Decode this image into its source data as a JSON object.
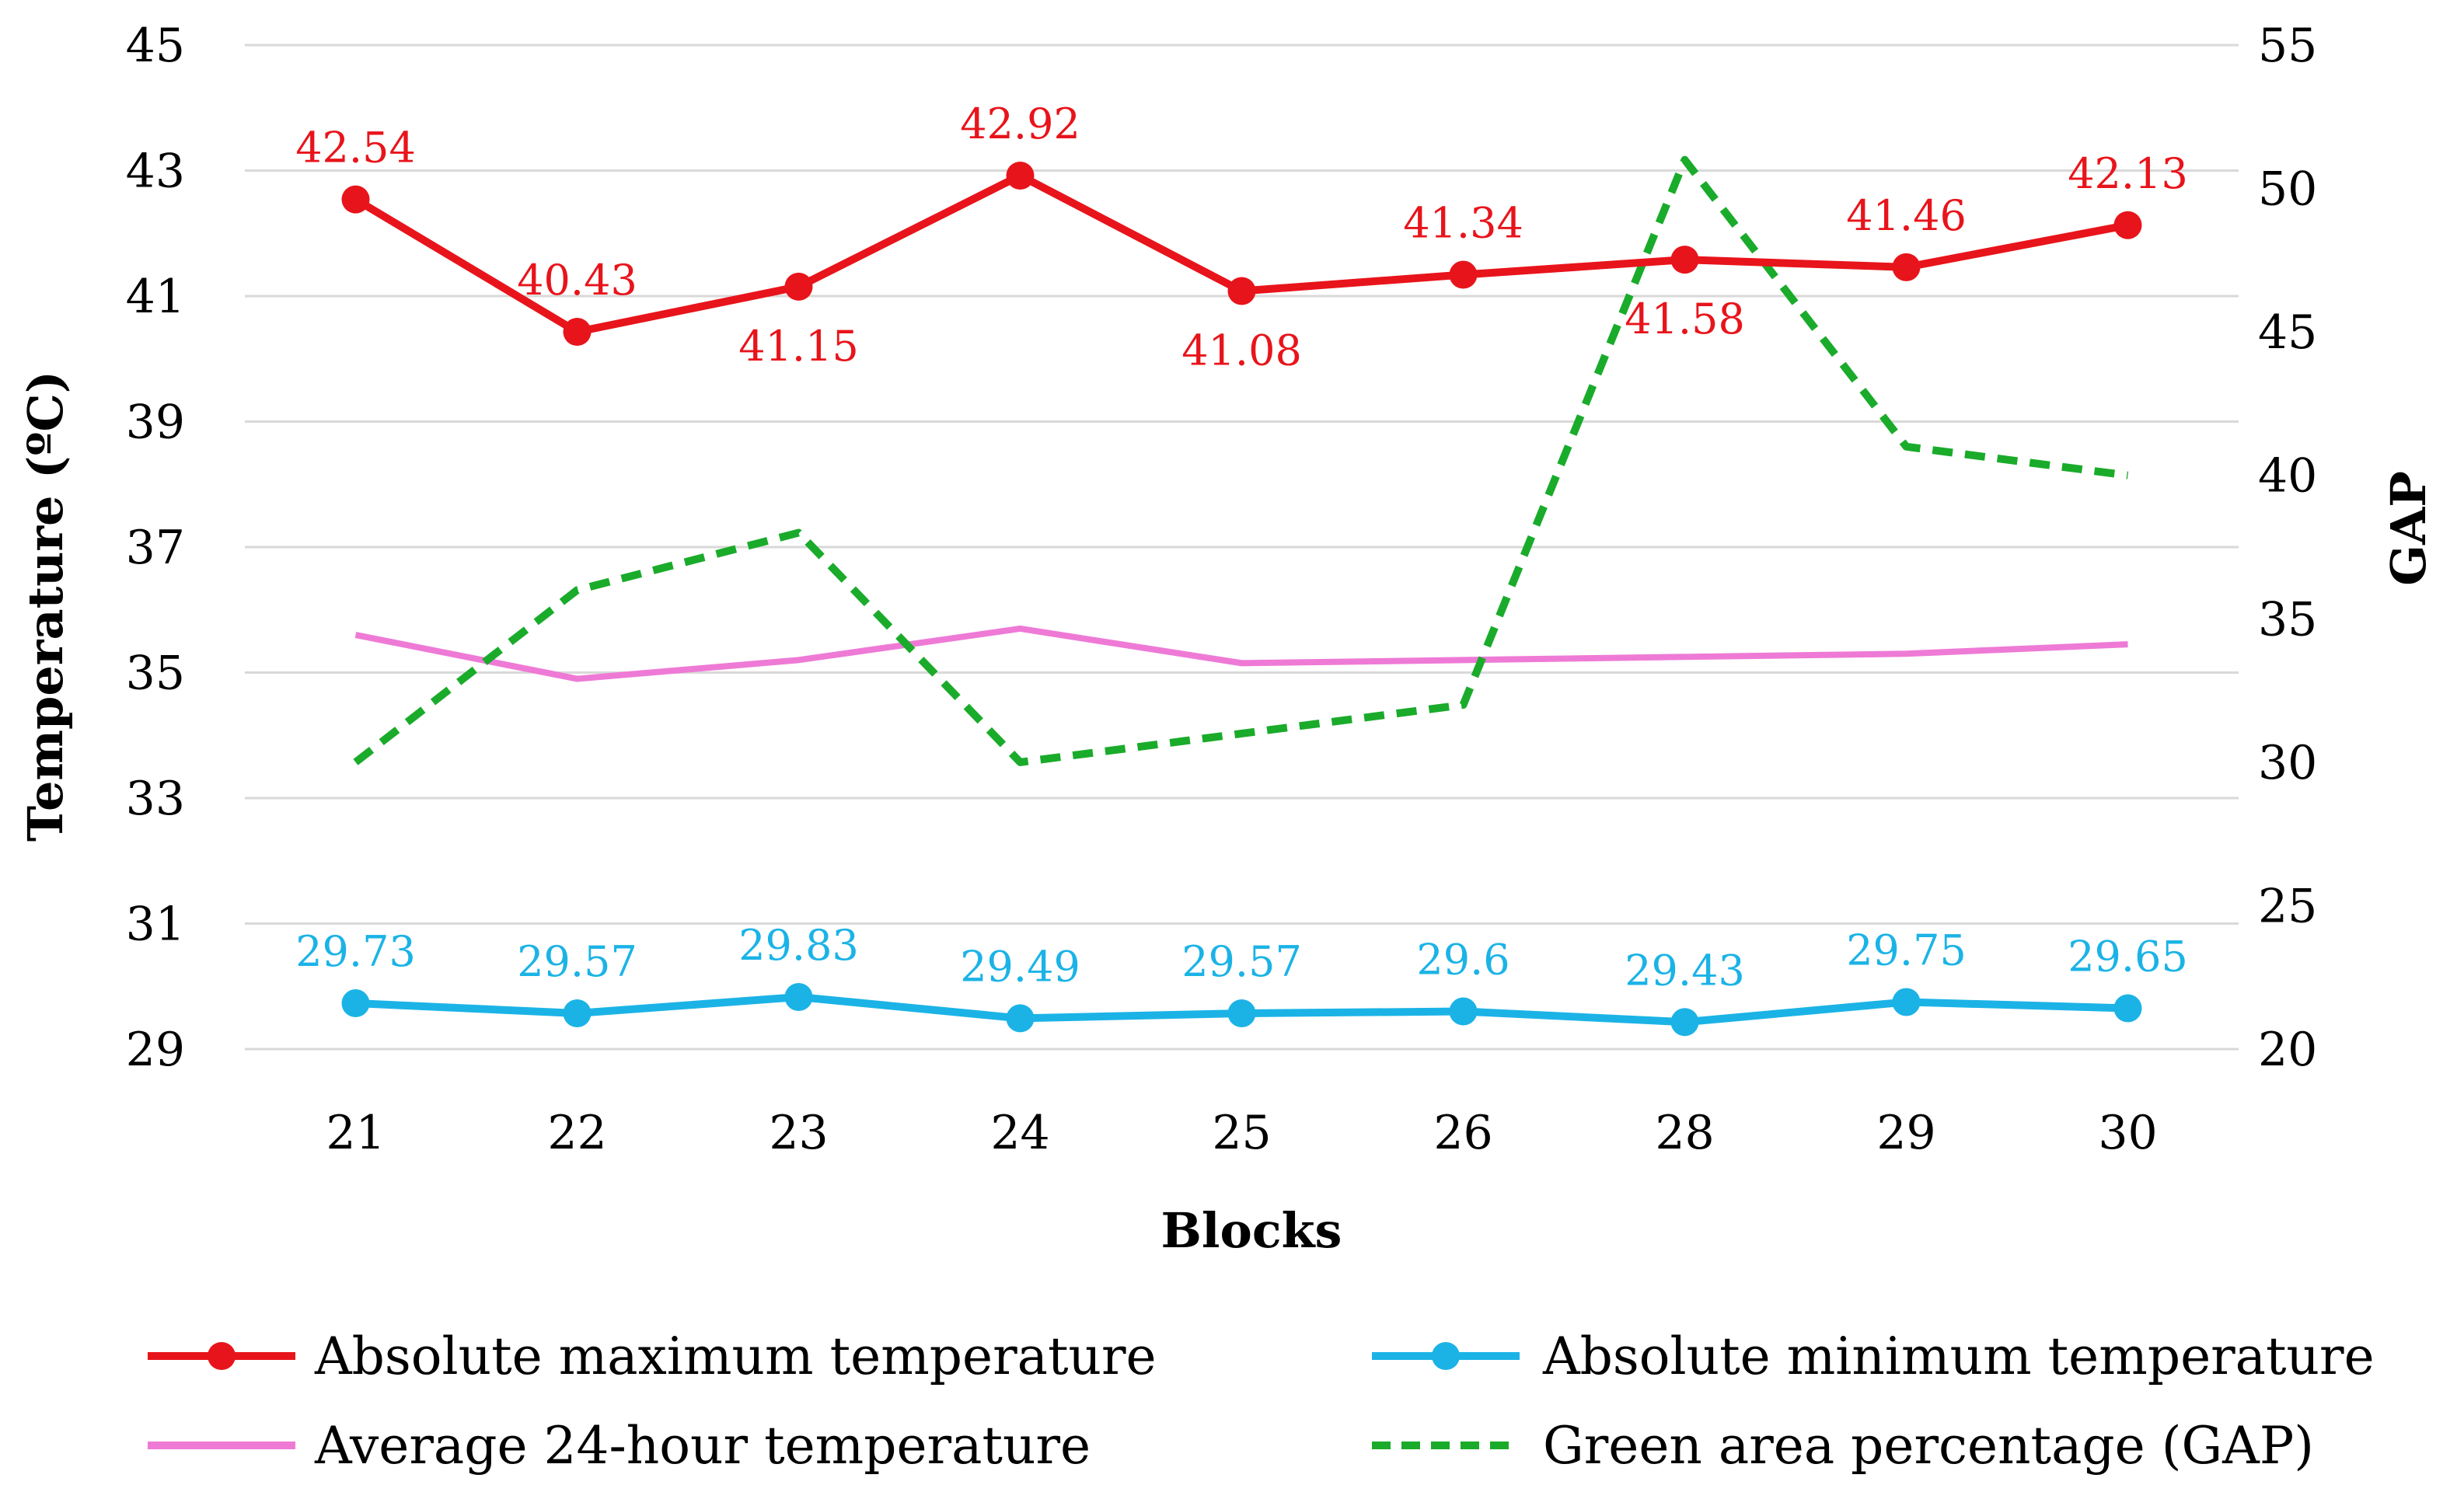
{
  "chart_data": {
    "type": "line",
    "title": "",
    "xlabel": "Blocks",
    "ylabel": "Temperature (ºC)",
    "y2label": "GAP",
    "categories": [
      "21",
      "22",
      "23",
      "24",
      "25",
      "26",
      "28",
      "29",
      "30"
    ],
    "ylim": [
      29,
      45
    ],
    "yticks": [
      "29",
      "31",
      "33",
      "35",
      "37",
      "39",
      "41",
      "43",
      "45"
    ],
    "y2lim": [
      20,
      55
    ],
    "y2ticks": [
      "20",
      "25",
      "30",
      "35",
      "40",
      "45",
      "50",
      "55"
    ],
    "grid": true,
    "legend_position": "bottom",
    "series": [
      {
        "key": "max",
        "name": "Absolute maximum temperature",
        "axis": "left",
        "color": "#e8141b",
        "style": "solid-marker",
        "values": [
          42.54,
          40.43,
          41.15,
          42.92,
          41.08,
          41.34,
          41.58,
          41.46,
          42.13
        ],
        "labels": [
          "42.54",
          "40.43",
          "41.15",
          "42.92",
          "41.08",
          "41.34",
          "41.58",
          "41.46",
          "42.13"
        ],
        "label_positions": [
          "above",
          "above",
          "below",
          "above",
          "below",
          "above",
          "below",
          "above",
          "above"
        ]
      },
      {
        "key": "min",
        "name": "Absolute minimum temperature",
        "axis": "left",
        "color": "#1bb3e6",
        "style": "solid-marker",
        "values": [
          29.73,
          29.57,
          29.83,
          29.49,
          29.57,
          29.6,
          29.43,
          29.75,
          29.65
        ],
        "labels": [
          "29.73",
          "29.57",
          "29.83",
          "29.49",
          "29.57",
          "29.6",
          "29.43",
          "29.75",
          "29.65"
        ],
        "label_positions": [
          "above",
          "above",
          "above",
          "above",
          "above",
          "above",
          "above",
          "above",
          "above"
        ]
      },
      {
        "key": "avg",
        "name": "Average 24-hour temperature",
        "axis": "left",
        "color": "#ee7ad6",
        "style": "solid",
        "values": [
          35.6,
          34.9,
          35.2,
          35.7,
          35.15,
          35.2,
          35.25,
          35.3,
          35.45
        ]
      },
      {
        "key": "gap",
        "name": "Green area percentage (GAP)",
        "axis": "right",
        "color": "#1aab2b",
        "style": "dashed",
        "values": [
          30,
          36,
          38,
          30,
          31,
          32,
          51,
          41,
          40
        ]
      }
    ]
  }
}
